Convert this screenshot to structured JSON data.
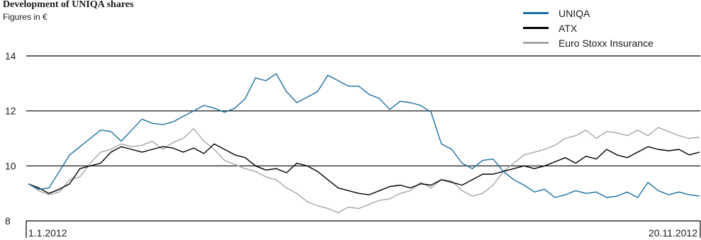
{
  "header": {
    "title": "Development of UNIQA shares",
    "subtitle": "Figures in €"
  },
  "chart_data": {
    "type": "line",
    "title": "Development of UNIQA shares",
    "subtitle": "Figures in €",
    "xlabel": "",
    "ylabel": "",
    "ylim": [
      8,
      14
    ],
    "yticks": [
      8,
      10,
      12,
      14
    ],
    "x_start_label": "1.1.2012",
    "x_end_label": "20.11.2012",
    "grid": true,
    "legend_position": "top-right",
    "series": [
      {
        "name": "UNIQA",
        "color": "#1a6fa3",
        "values": [
          9.35,
          9.15,
          9.2,
          9.8,
          10.4,
          10.7,
          11.0,
          11.3,
          11.25,
          10.9,
          11.3,
          11.7,
          11.55,
          11.5,
          11.6,
          11.8,
          12.0,
          12.2,
          12.1,
          11.95,
          12.1,
          12.45,
          13.2,
          13.1,
          13.35,
          12.7,
          12.3,
          12.5,
          12.7,
          13.3,
          13.1,
          12.9,
          12.9,
          12.6,
          12.45,
          12.05,
          12.35,
          12.3,
          12.2,
          11.95,
          10.8,
          10.6,
          10.1,
          9.9,
          10.2,
          10.25,
          9.8,
          9.5,
          9.3,
          9.05,
          9.15,
          8.85,
          8.95,
          9.1,
          9.0,
          9.05,
          8.85,
          8.9,
          9.05,
          8.85,
          9.4,
          9.1,
          8.95,
          9.05,
          8.95,
          8.9
        ]
      },
      {
        "name": "ATX",
        "color": "#000000",
        "values": [
          9.35,
          9.2,
          9.0,
          9.15,
          9.35,
          9.9,
          10.0,
          10.1,
          10.5,
          10.7,
          10.6,
          10.5,
          10.6,
          10.7,
          10.65,
          10.5,
          10.65,
          10.45,
          10.8,
          10.6,
          10.4,
          10.3,
          10.0,
          9.85,
          9.9,
          9.75,
          10.1,
          10.0,
          9.8,
          9.5,
          9.2,
          9.1,
          9.0,
          8.95,
          9.1,
          9.25,
          9.3,
          9.2,
          9.35,
          9.3,
          9.5,
          9.4,
          9.3,
          9.5,
          9.7,
          9.7,
          9.8,
          9.9,
          10.0,
          9.9,
          10.0,
          10.15,
          10.3,
          10.1,
          10.35,
          10.25,
          10.6,
          10.4,
          10.3,
          10.5,
          10.7,
          10.6,
          10.55,
          10.6,
          10.4,
          10.5
        ]
      },
      {
        "name": "Euro Stoxx Insurance",
        "color": "#a6a6a6",
        "values": [
          9.35,
          9.1,
          8.95,
          9.05,
          9.5,
          9.6,
          10.1,
          10.5,
          10.6,
          10.8,
          10.7,
          10.75,
          10.9,
          10.6,
          10.85,
          11.0,
          11.35,
          10.9,
          10.6,
          10.2,
          10.05,
          9.9,
          9.8,
          9.6,
          9.5,
          9.2,
          9.0,
          8.7,
          8.55,
          8.45,
          8.3,
          8.5,
          8.45,
          8.6,
          8.75,
          8.8,
          9.0,
          9.1,
          9.4,
          9.2,
          9.5,
          9.45,
          9.1,
          8.9,
          9.0,
          9.3,
          9.8,
          10.1,
          10.4,
          10.5,
          10.6,
          10.75,
          11.0,
          11.1,
          11.3,
          11.0,
          11.25,
          11.2,
          11.1,
          11.3,
          11.1,
          11.4,
          11.25,
          11.1,
          11.0,
          11.05
        ]
      }
    ]
  }
}
